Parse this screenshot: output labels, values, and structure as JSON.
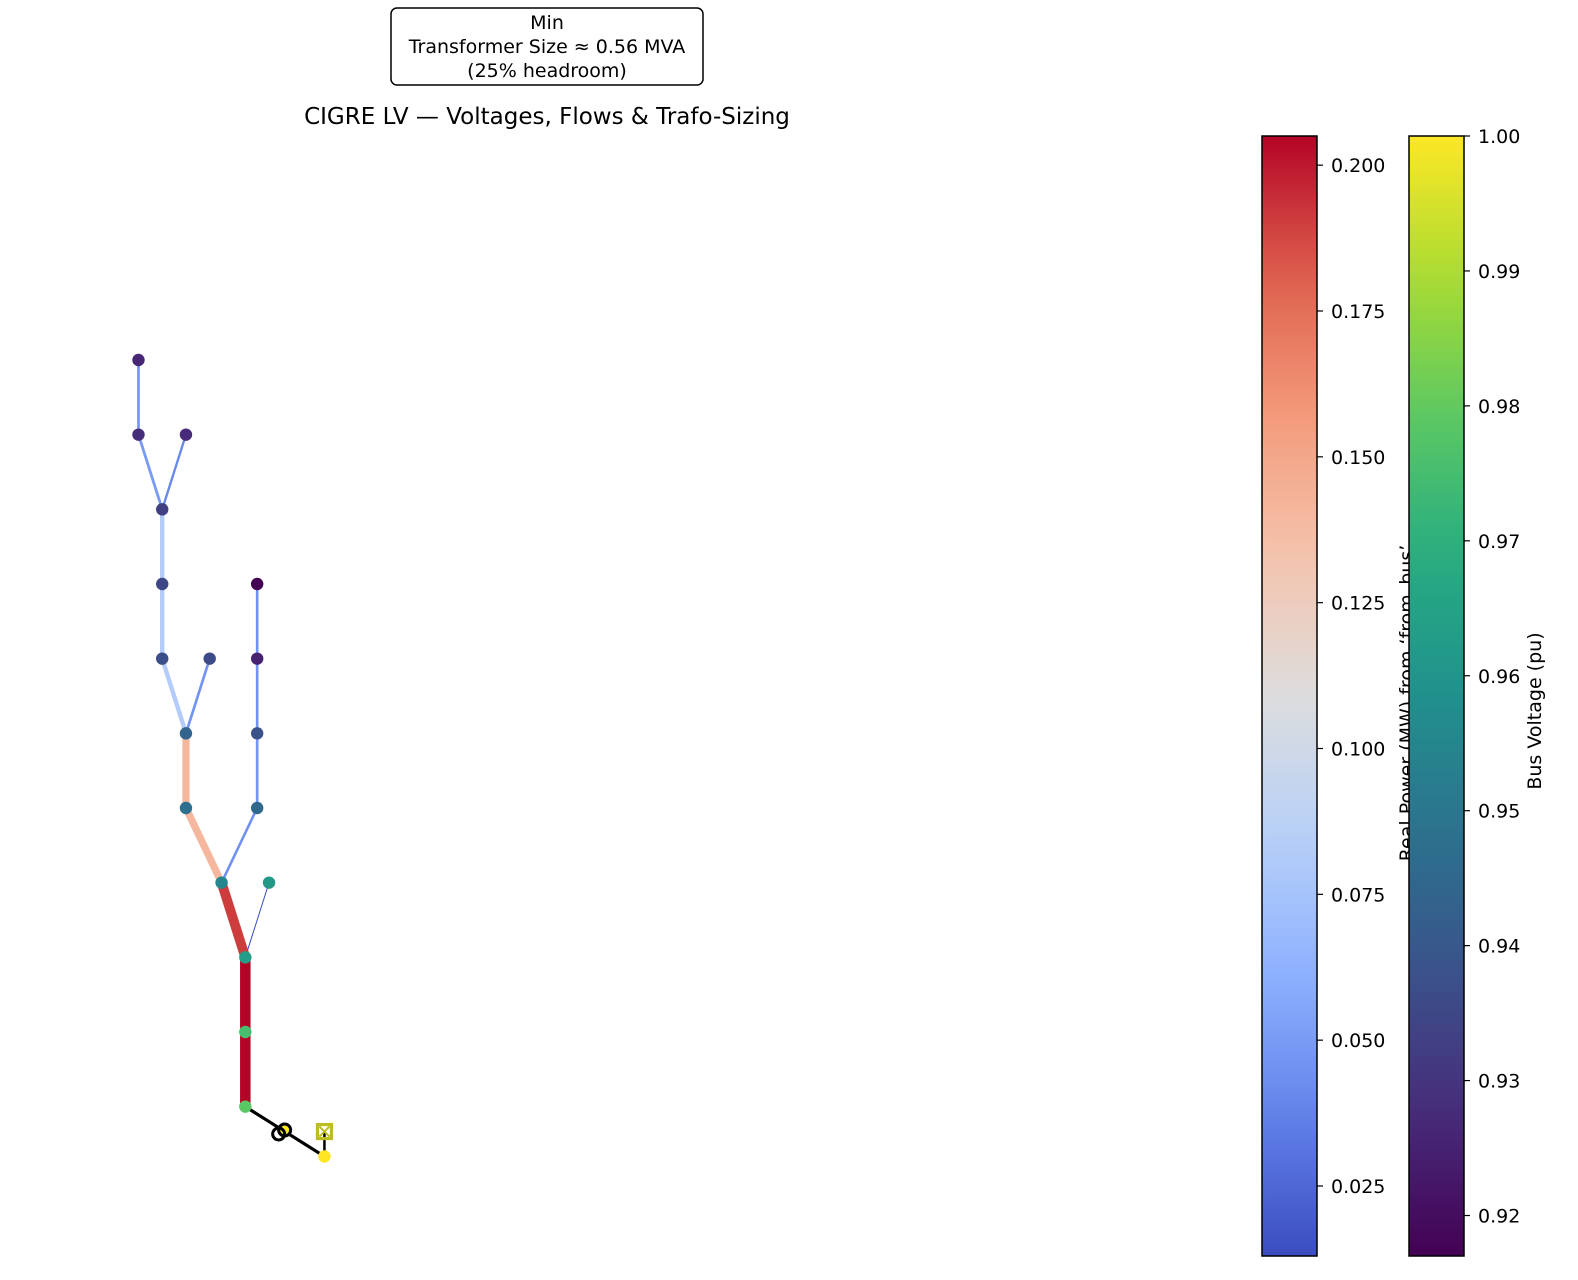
{
  "chart_data": {
    "type": "network",
    "title": "CIGRE LV — Voltages, Flows & Trafo-Sizing",
    "annotation": {
      "lines": [
        "Min",
        "Transformer Size ≈ 0.56 MVA",
        "(25% headroom)"
      ]
    },
    "colorbars": [
      {
        "label": "Real Power (MW) from ‘from_bus’",
        "colormap": "coolwarm",
        "range": [
          0.013,
          0.205
        ],
        "ticks": [
          "0.025",
          "0.050",
          "0.075",
          "0.100",
          "0.125",
          "0.150",
          "0.175",
          "0.200"
        ]
      },
      {
        "label": "Bus Voltage (pu)",
        "colormap": "viridis",
        "range": [
          0.917,
          1.0
        ],
        "ticks": [
          "0.92",
          "0.93",
          "0.94",
          "0.95",
          "0.96",
          "0.97",
          "0.98",
          "0.99",
          "1.00"
        ]
      }
    ],
    "buses": [
      {
        "id": "b1",
        "x": 0.0,
        "y": 0.0,
        "vm_pu": 1.0
      },
      {
        "id": "b2",
        "x": -1.0,
        "y": 0.4,
        "vm_pu": 1.0
      },
      {
        "id": "b3",
        "x": -2.0,
        "y": 0.8,
        "vm_pu": 0.979
      },
      {
        "id": "b4",
        "x": -2.0,
        "y": 2.0,
        "vm_pu": 0.975
      },
      {
        "id": "b5",
        "x": -2.0,
        "y": 3.2,
        "vm_pu": 0.963
      },
      {
        "id": "b6",
        "x": -1.4,
        "y": 4.4,
        "vm_pu": 0.962
      },
      {
        "id": "b7",
        "x": -2.6,
        "y": 4.4,
        "vm_pu": 0.955
      },
      {
        "id": "b8",
        "x": -3.5,
        "y": 5.6,
        "vm_pu": 0.947
      },
      {
        "id": "b9",
        "x": -3.5,
        "y": 6.8,
        "vm_pu": 0.944
      },
      {
        "id": "b10",
        "x": -4.1,
        "y": 8.0,
        "vm_pu": 0.937
      },
      {
        "id": "b11",
        "x": -2.9,
        "y": 8.0,
        "vm_pu": 0.936
      },
      {
        "id": "b12",
        "x": -4.1,
        "y": 9.2,
        "vm_pu": 0.935
      },
      {
        "id": "b13",
        "x": -4.1,
        "y": 10.4,
        "vm_pu": 0.933
      },
      {
        "id": "b14",
        "x": -4.7,
        "y": 11.6,
        "vm_pu": 0.928
      },
      {
        "id": "b15",
        "x": -3.5,
        "y": 11.6,
        "vm_pu": 0.927
      },
      {
        "id": "b16",
        "x": -4.7,
        "y": 12.8,
        "vm_pu": 0.926
      },
      {
        "id": "b17",
        "x": -1.7,
        "y": 5.6,
        "vm_pu": 0.946
      },
      {
        "id": "b18",
        "x": -1.7,
        "y": 6.8,
        "vm_pu": 0.938
      },
      {
        "id": "b19",
        "x": -1.7,
        "y": 8.0,
        "vm_pu": 0.925
      },
      {
        "id": "b20",
        "x": -1.7,
        "y": 9.2,
        "vm_pu": 0.917
      }
    ],
    "ext_grid": {
      "bus": "b1",
      "x": 0.0,
      "y": 0.4
    },
    "trafo": {
      "from": "b2",
      "to": "b1"
    },
    "trafo_lines": [
      {
        "from": "b1",
        "to": "b2"
      },
      {
        "from": "b2",
        "to": "b3"
      }
    ],
    "lines": [
      {
        "from": "b3",
        "to": "b4",
        "p_mw": 0.205
      },
      {
        "from": "b4",
        "to": "b5",
        "p_mw": 0.205
      },
      {
        "from": "b5",
        "to": "b6",
        "p_mw": 0.013
      },
      {
        "from": "b5",
        "to": "b7",
        "p_mw": 0.19
      },
      {
        "from": "b7",
        "to": "b17",
        "p_mw": 0.045
      },
      {
        "from": "b7",
        "to": "b8",
        "p_mw": 0.14
      },
      {
        "from": "b8",
        "to": "b9",
        "p_mw": 0.14
      },
      {
        "from": "b9",
        "to": "b11",
        "p_mw": 0.046
      },
      {
        "from": "b9",
        "to": "b10",
        "p_mw": 0.082
      },
      {
        "from": "b10",
        "to": "b12",
        "p_mw": 0.082
      },
      {
        "from": "b12",
        "to": "b13",
        "p_mw": 0.082
      },
      {
        "from": "b13",
        "to": "b15",
        "p_mw": 0.04
      },
      {
        "from": "b13",
        "to": "b14",
        "p_mw": 0.05
      },
      {
        "from": "b14",
        "to": "b16",
        "p_mw": 0.045
      },
      {
        "from": "b17",
        "to": "b18",
        "p_mw": 0.047
      },
      {
        "from": "b18",
        "to": "b19",
        "p_mw": 0.046
      },
      {
        "from": "b19",
        "to": "b20",
        "p_mw": 0.046
      }
    ],
    "xlim": [
      -8.2,
      19.4
    ],
    "ylim": [
      -1.6,
      16.4
    ],
    "grid": false,
    "axes": "off"
  }
}
